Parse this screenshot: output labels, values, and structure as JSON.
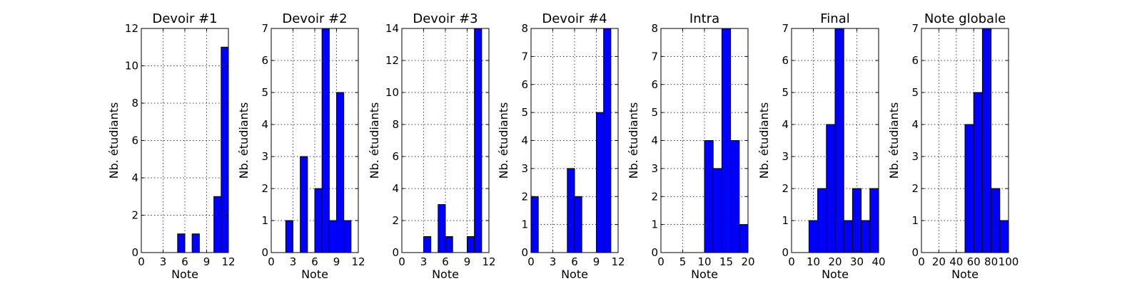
{
  "colors": {
    "bar_fill": "#0000ff",
    "bar_edge": "#000000",
    "grid": "#000000",
    "background": "#ffffff"
  },
  "chart_data": [
    {
      "type": "bar",
      "title": "Devoir #1",
      "xlabel": "Note",
      "ylabel": "Nb. étudiants",
      "xlim": [
        0,
        12
      ],
      "ylim": [
        0,
        12
      ],
      "xticks": [
        0,
        3,
        6,
        9,
        12
      ],
      "yticks": [
        0,
        2,
        4,
        6,
        8,
        10,
        12
      ],
      "grid": true,
      "bins": [
        {
          "x0": 0,
          "x1": 1,
          "value": 0
        },
        {
          "x0": 5,
          "x1": 6,
          "value": 1
        },
        {
          "x0": 7,
          "x1": 8,
          "value": 1
        },
        {
          "x0": 10,
          "x1": 11,
          "value": 3
        },
        {
          "x0": 11,
          "x1": 12,
          "value": 11
        }
      ]
    },
    {
      "type": "bar",
      "title": "Devoir #2",
      "xlabel": "Note",
      "ylabel": "Nb. étudiants",
      "xlim": [
        0,
        12
      ],
      "ylim": [
        0,
        7
      ],
      "xticks": [
        0,
        3,
        6,
        9,
        12
      ],
      "yticks": [
        0,
        1,
        2,
        3,
        4,
        5,
        6,
        7
      ],
      "grid": true,
      "bins": [
        {
          "x0": 0,
          "x1": 1,
          "value": 0
        },
        {
          "x0": 2,
          "x1": 3,
          "value": 1
        },
        {
          "x0": 4,
          "x1": 5,
          "value": 3
        },
        {
          "x0": 6,
          "x1": 7,
          "value": 2
        },
        {
          "x0": 7,
          "x1": 8,
          "value": 7
        },
        {
          "x0": 8,
          "x1": 9,
          "value": 1
        },
        {
          "x0": 9,
          "x1": 10,
          "value": 5
        },
        {
          "x0": 10,
          "x1": 11,
          "value": 1
        }
      ]
    },
    {
      "type": "bar",
      "title": "Devoir #3",
      "xlabel": "Note",
      "ylabel": "Nb. étudiants",
      "xlim": [
        0,
        12
      ],
      "ylim": [
        0,
        14
      ],
      "xticks": [
        0,
        3,
        6,
        9,
        12
      ],
      "yticks": [
        0,
        2,
        4,
        6,
        8,
        10,
        12,
        14
      ],
      "grid": true,
      "bins": [
        {
          "x0": 0,
          "x1": 1,
          "value": 0
        },
        {
          "x0": 3,
          "x1": 4,
          "value": 1
        },
        {
          "x0": 5,
          "x1": 6,
          "value": 3
        },
        {
          "x0": 6,
          "x1": 7,
          "value": 1
        },
        {
          "x0": 9,
          "x1": 10,
          "value": 1
        },
        {
          "x0": 10,
          "x1": 11,
          "value": 14
        }
      ]
    },
    {
      "type": "bar",
      "title": "Devoir #4",
      "xlabel": "Note",
      "ylabel": "Nb. étudiants",
      "xlim": [
        0,
        12
      ],
      "ylim": [
        0,
        8
      ],
      "xticks": [
        0,
        3,
        6,
        9,
        12
      ],
      "yticks": [
        0,
        1,
        2,
        3,
        4,
        5,
        6,
        7,
        8
      ],
      "grid": true,
      "bins": [
        {
          "x0": 0,
          "x1": 1,
          "value": 2
        },
        {
          "x0": 5,
          "x1": 6,
          "value": 3
        },
        {
          "x0": 6,
          "x1": 7,
          "value": 2
        },
        {
          "x0": 9,
          "x1": 10,
          "value": 5
        },
        {
          "x0": 10,
          "x1": 11,
          "value": 8
        }
      ]
    },
    {
      "type": "bar",
      "title": "Intra",
      "xlabel": "Note",
      "ylabel": "Nb. étudiants",
      "xlim": [
        0,
        20
      ],
      "ylim": [
        0,
        8
      ],
      "xticks": [
        0,
        5,
        10,
        15,
        20
      ],
      "yticks": [
        0,
        1,
        2,
        3,
        4,
        5,
        6,
        7,
        8
      ],
      "grid": true,
      "bins": [
        {
          "x0": 10,
          "x1": 12,
          "value": 4
        },
        {
          "x0": 12,
          "x1": 14,
          "value": 3
        },
        {
          "x0": 14,
          "x1": 16,
          "value": 8
        },
        {
          "x0": 16,
          "x1": 18,
          "value": 4
        },
        {
          "x0": 18,
          "x1": 20,
          "value": 1
        }
      ]
    },
    {
      "type": "bar",
      "title": "Final",
      "xlabel": "Note",
      "ylabel": "Nb. étudiants",
      "xlim": [
        0,
        40
      ],
      "ylim": [
        0,
        7
      ],
      "xticks": [
        0,
        10,
        20,
        30,
        40
      ],
      "yticks": [
        0,
        1,
        2,
        3,
        4,
        5,
        6,
        7
      ],
      "grid": true,
      "bins": [
        {
          "x0": 8,
          "x1": 12,
          "value": 1
        },
        {
          "x0": 12,
          "x1": 16,
          "value": 2
        },
        {
          "x0": 16,
          "x1": 20,
          "value": 4
        },
        {
          "x0": 20,
          "x1": 24,
          "value": 7
        },
        {
          "x0": 24,
          "x1": 28,
          "value": 1
        },
        {
          "x0": 28,
          "x1": 32,
          "value": 2
        },
        {
          "x0": 32,
          "x1": 36,
          "value": 1
        },
        {
          "x0": 36,
          "x1": 40,
          "value": 2
        }
      ]
    },
    {
      "type": "bar",
      "title": "Note globale",
      "xlabel": "Note",
      "ylabel": "Nb. étudiants",
      "xlim": [
        0,
        100
      ],
      "ylim": [
        0,
        7
      ],
      "xticks": [
        0,
        20,
        40,
        60,
        80,
        100
      ],
      "yticks": [
        0,
        1,
        2,
        3,
        4,
        5,
        6,
        7
      ],
      "grid": true,
      "bins": [
        {
          "x0": 50,
          "x1": 60,
          "value": 4
        },
        {
          "x0": 60,
          "x1": 70,
          "value": 5
        },
        {
          "x0": 70,
          "x1": 80,
          "value": 7
        },
        {
          "x0": 80,
          "x1": 90,
          "value": 2
        },
        {
          "x0": 90,
          "x1": 100,
          "value": 1
        }
      ]
    }
  ]
}
